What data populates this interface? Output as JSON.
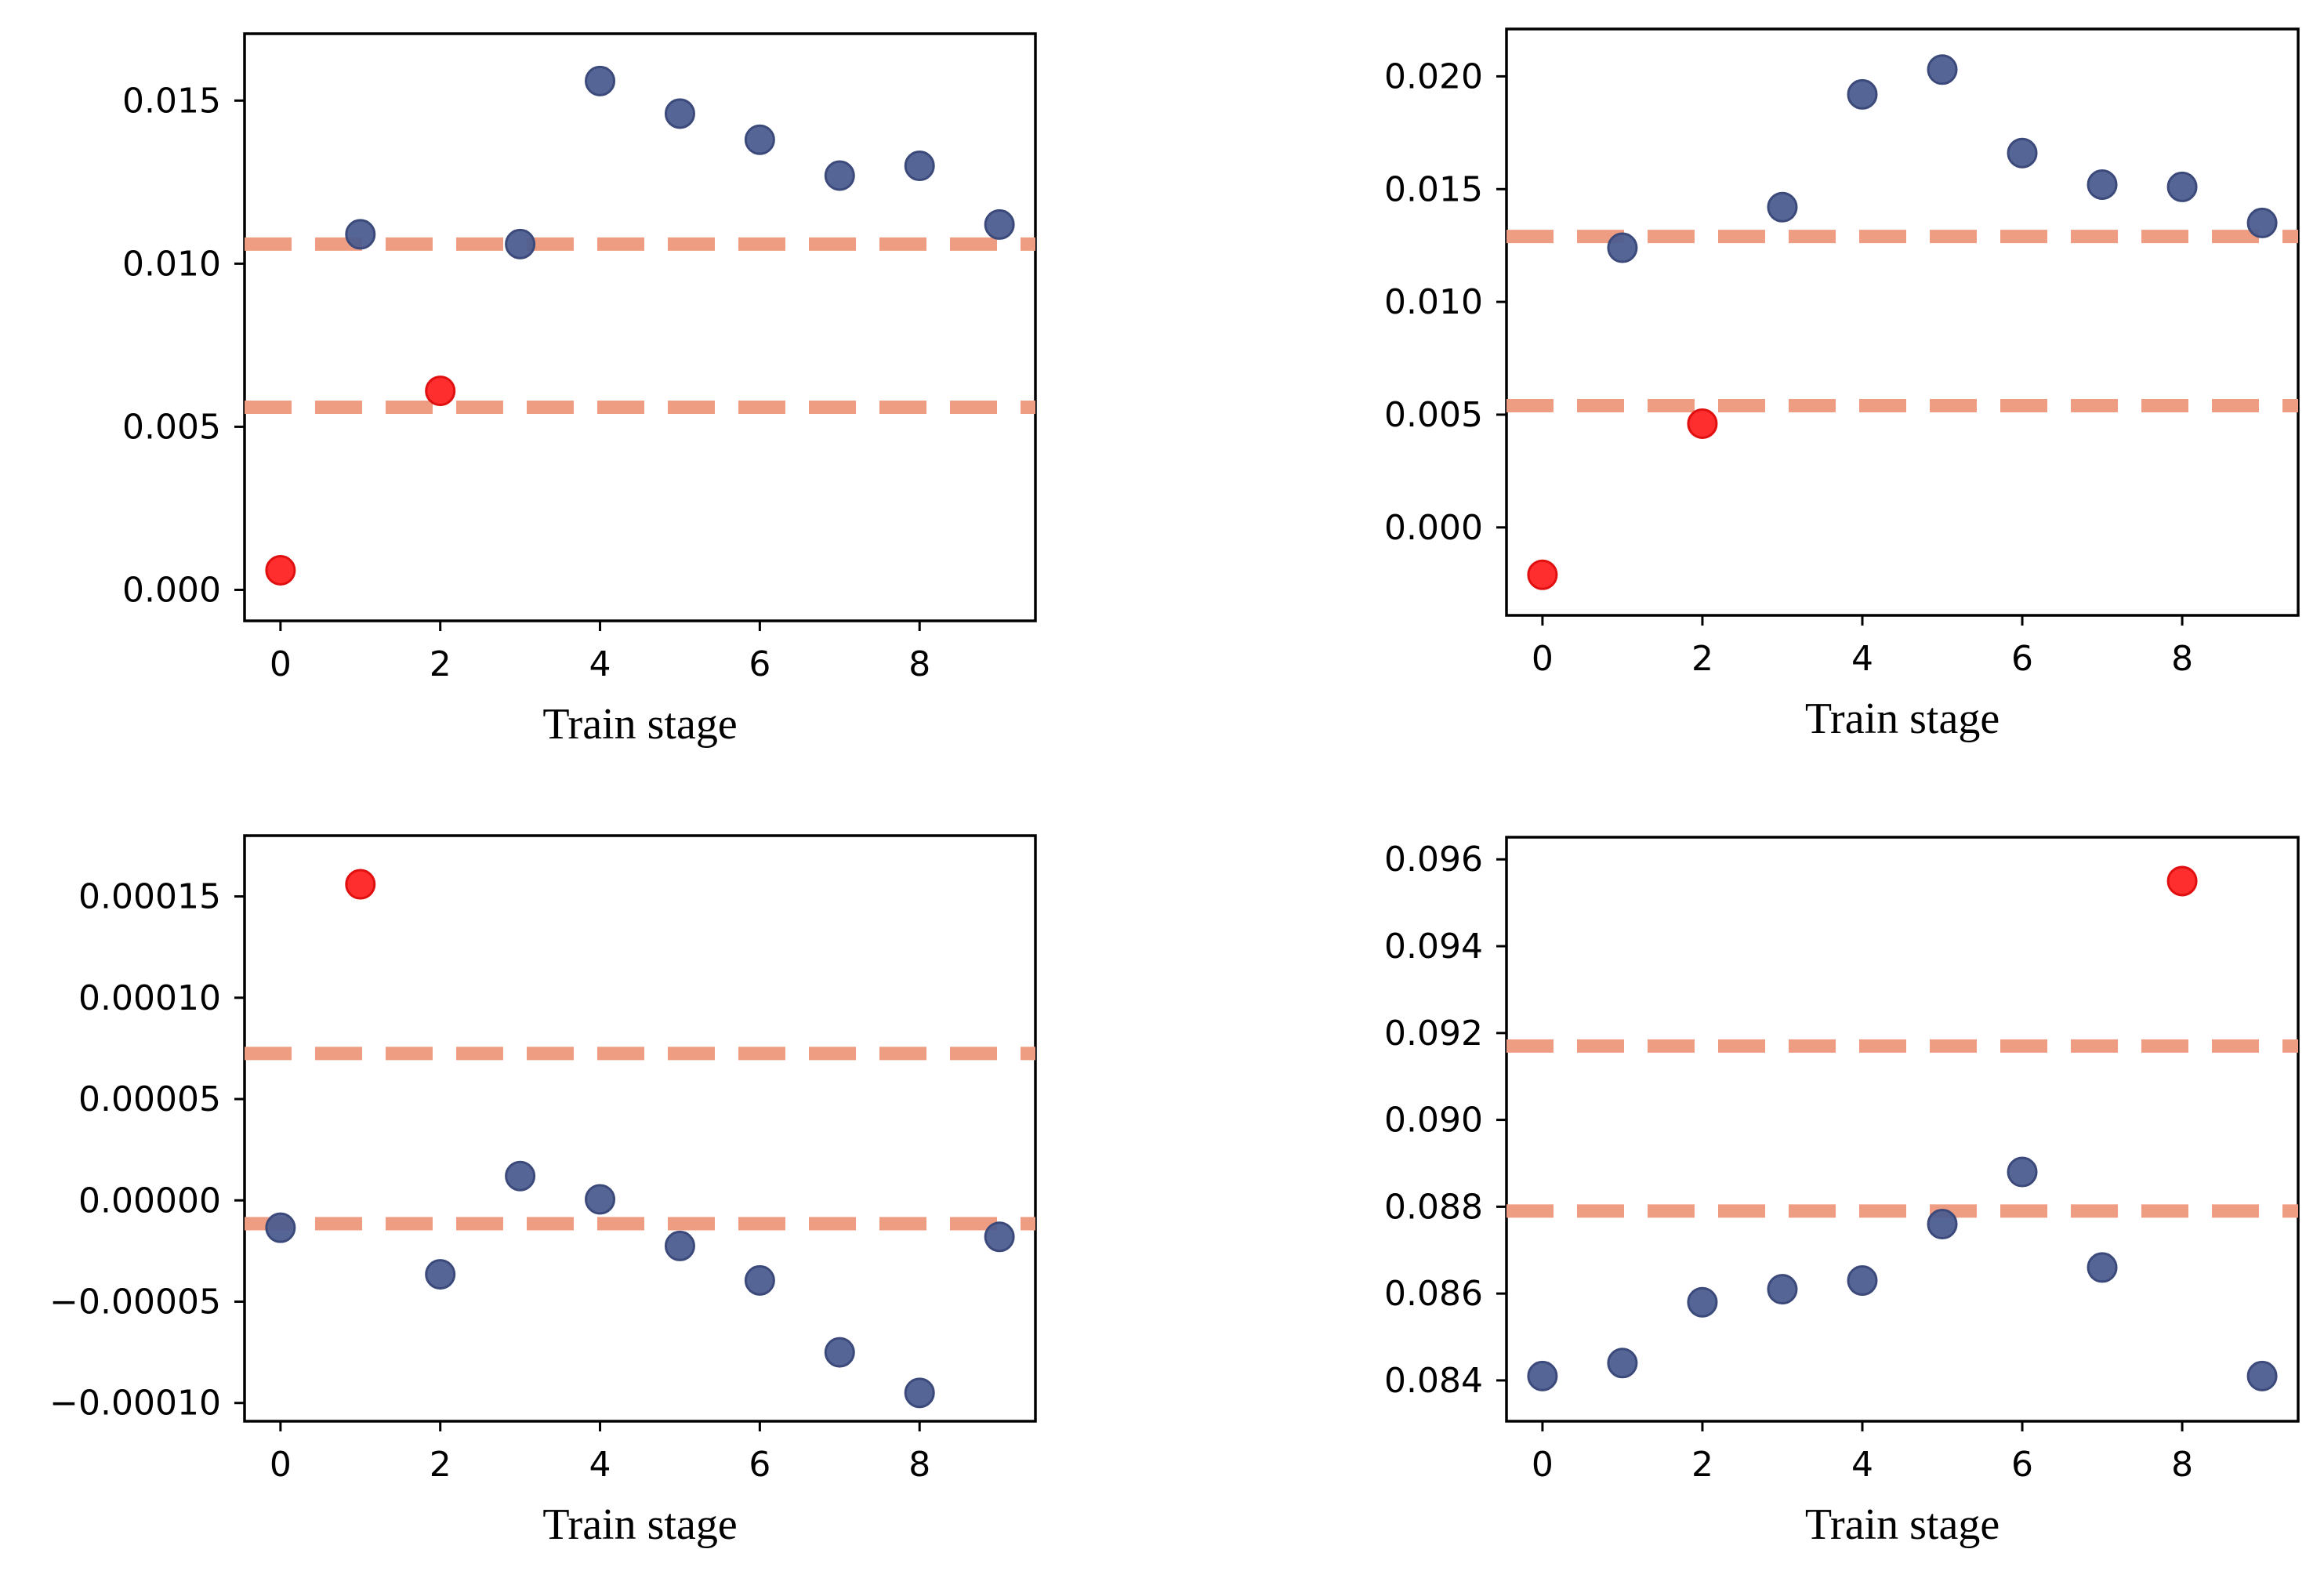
{
  "colors": {
    "normal_fill": "#4c5d8f",
    "normal_edge": "#3b4a7a",
    "outlier_fill": "#ff2323",
    "outlier_edge": "#e01010",
    "ref_line": "#ef9d82"
  },
  "chart_data": [
    {
      "type": "scatter",
      "xlabel": "Train stage",
      "ylabel": "",
      "xlim": [
        -0.45,
        9.45
      ],
      "ylim": [
        -0.00095,
        0.01705
      ],
      "xticks": [
        0,
        2,
        4,
        6,
        8
      ],
      "xtick_labels": [
        "0",
        "2",
        "4",
        "6",
        "8"
      ],
      "yticks": [
        0.0,
        0.005,
        0.01,
        0.015
      ],
      "ytick_labels": [
        "0.000",
        "0.005",
        "0.010",
        "0.015"
      ],
      "ref_lines": [
        0.0106,
        0.0056
      ],
      "points": [
        {
          "x": 0,
          "y": 0.0006,
          "outlier": true
        },
        {
          "x": 1,
          "y": 0.0109,
          "outlier": false
        },
        {
          "x": 2,
          "y": 0.0061,
          "outlier": true
        },
        {
          "x": 3,
          "y": 0.0106,
          "outlier": false
        },
        {
          "x": 4,
          "y": 0.0156,
          "outlier": false
        },
        {
          "x": 5,
          "y": 0.0146,
          "outlier": false
        },
        {
          "x": 6,
          "y": 0.0138,
          "outlier": false
        },
        {
          "x": 7,
          "y": 0.0127,
          "outlier": false
        },
        {
          "x": 8,
          "y": 0.013,
          "outlier": false
        },
        {
          "x": 9,
          "y": 0.0112,
          "outlier": false
        }
      ]
    },
    {
      "type": "scatter",
      "xlabel": "Train stage",
      "ylabel": "",
      "xlim": [
        -0.45,
        9.45
      ],
      "ylim": [
        -0.0039,
        0.0221
      ],
      "xticks": [
        0,
        2,
        4,
        6,
        8
      ],
      "xtick_labels": [
        "0",
        "2",
        "4",
        "6",
        "8"
      ],
      "yticks": [
        0.0,
        0.005,
        0.01,
        0.015,
        0.02
      ],
      "ytick_labels": [
        "0.000",
        "0.005",
        "0.010",
        "0.015",
        "0.020"
      ],
      "ref_lines": [
        0.0129,
        0.0054
      ],
      "points": [
        {
          "x": 0,
          "y": -0.0021,
          "outlier": true
        },
        {
          "x": 1,
          "y": 0.0124,
          "outlier": false
        },
        {
          "x": 2,
          "y": 0.0046,
          "outlier": true
        },
        {
          "x": 3,
          "y": 0.0142,
          "outlier": false
        },
        {
          "x": 4,
          "y": 0.0192,
          "outlier": false
        },
        {
          "x": 5,
          "y": 0.0203,
          "outlier": false
        },
        {
          "x": 6,
          "y": 0.0166,
          "outlier": false
        },
        {
          "x": 7,
          "y": 0.0152,
          "outlier": false
        },
        {
          "x": 8,
          "y": 0.0151,
          "outlier": false
        },
        {
          "x": 9,
          "y": 0.0135,
          "outlier": false
        }
      ]
    },
    {
      "type": "scatter",
      "xlabel": "Train stage",
      "ylabel": "",
      "xlim": [
        -0.45,
        9.45
      ],
      "ylim": [
        -0.000109,
        0.00018
      ],
      "xticks": [
        0,
        2,
        4,
        6,
        8
      ],
      "xtick_labels": [
        "0",
        "2",
        "4",
        "6",
        "8"
      ],
      "yticks": [
        -0.0001,
        -5e-05,
        0.0,
        5e-05,
        0.0001,
        0.00015
      ],
      "ytick_labels": [
        "−0.00010",
        "−0.00005",
        "0.00000",
        "0.00005",
        "0.00010",
        "0.00015"
      ],
      "ref_lines": [
        7.25e-05,
        -1.15e-05
      ],
      "points": [
        {
          "x": 0,
          "y": -1.35e-05,
          "outlier": false
        },
        {
          "x": 1,
          "y": 0.000156,
          "outlier": true
        },
        {
          "x": 2,
          "y": -3.65e-05,
          "outlier": false
        },
        {
          "x": 3,
          "y": 1.2e-05,
          "outlier": false
        },
        {
          "x": 4,
          "y": 5e-07,
          "outlier": false
        },
        {
          "x": 5,
          "y": -2.25e-05,
          "outlier": false
        },
        {
          "x": 6,
          "y": -3.95e-05,
          "outlier": false
        },
        {
          "x": 7,
          "y": -7.5e-05,
          "outlier": false
        },
        {
          "x": 8,
          "y": -9.5e-05,
          "outlier": false
        },
        {
          "x": 9,
          "y": -1.8e-05,
          "outlier": false
        }
      ]
    },
    {
      "type": "scatter",
      "xlabel": "Train stage",
      "ylabel": "",
      "xlim": [
        -0.45,
        9.45
      ],
      "ylim": [
        0.08306,
        0.09651
      ],
      "xticks": [
        0,
        2,
        4,
        6,
        8
      ],
      "xtick_labels": [
        "0",
        "2",
        "4",
        "6",
        "8"
      ],
      "yticks": [
        0.084,
        0.086,
        0.088,
        0.09,
        0.092,
        0.094,
        0.096
      ],
      "ytick_labels": [
        "0.084",
        "0.086",
        "0.088",
        "0.090",
        "0.092",
        "0.094",
        "0.096"
      ],
      "ref_lines": [
        0.0917,
        0.0879
      ],
      "points": [
        {
          "x": 0,
          "y": 0.0841,
          "outlier": false
        },
        {
          "x": 1,
          "y": 0.0844,
          "outlier": false
        },
        {
          "x": 2,
          "y": 0.0858,
          "outlier": false
        },
        {
          "x": 3,
          "y": 0.0861,
          "outlier": false
        },
        {
          "x": 4,
          "y": 0.0863,
          "outlier": false
        },
        {
          "x": 5,
          "y": 0.0876,
          "outlier": false
        },
        {
          "x": 6,
          "y": 0.0888,
          "outlier": false
        },
        {
          "x": 7,
          "y": 0.0866,
          "outlier": false
        },
        {
          "x": 8,
          "y": 0.0955,
          "outlier": true
        },
        {
          "x": 9,
          "y": 0.0841,
          "outlier": false
        }
      ]
    }
  ]
}
